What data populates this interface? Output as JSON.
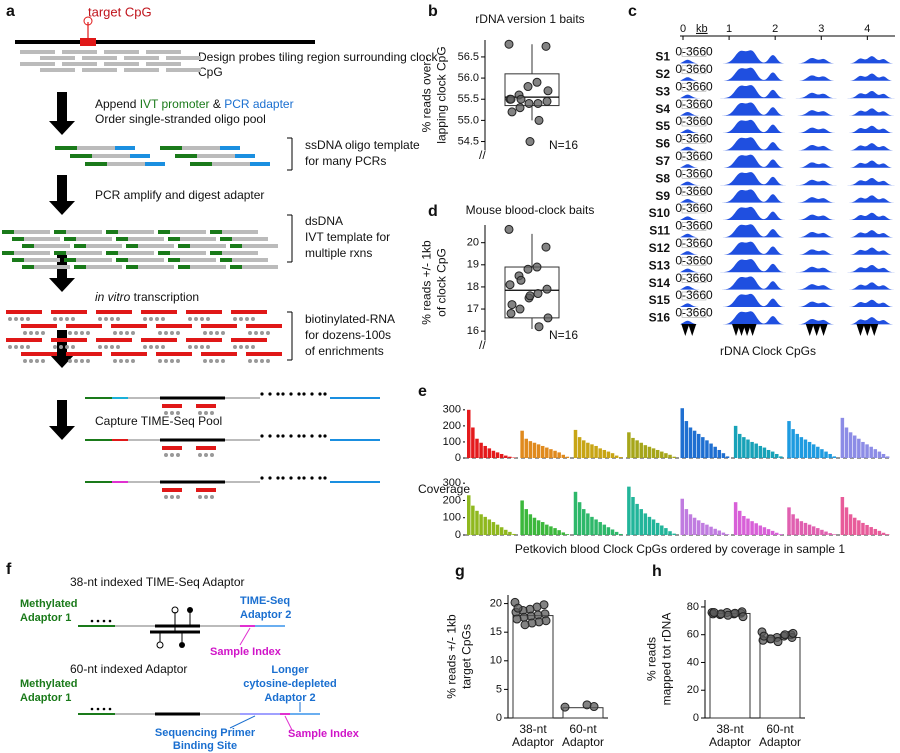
{
  "panel_a": {
    "label": "a",
    "target_label": "target CpG",
    "step1": [
      "Design probes tiling region surrounding clock",
      "CpG"
    ],
    "step2": [
      "Append ",
      "IVT promoter",
      " & ",
      "PCR adapter"
    ],
    "step2b": "Order single-stranded oligo pool",
    "note1": [
      "ssDNA oligo template",
      "for many PCRs"
    ],
    "step3": "PCR amplify and digest adapter",
    "note2": [
      "dsDNA",
      "IVT template for",
      "multiple rxns"
    ],
    "step4": [
      "in vitro",
      " transcription"
    ],
    "note3": [
      "biotinylated-RNA",
      "for dozens-100s",
      "of enrichments"
    ],
    "step5": "Capture TIME-Seq Pool"
  },
  "panel_f": {
    "label": "f",
    "title1": "38-nt indexed TIME-Seq Adaptor",
    "meth1": [
      "Methylated",
      "Adaptor 1"
    ],
    "ad2": [
      "TIME-Seq",
      "Adaptor 2"
    ],
    "index1": "Sample Index",
    "title2": "60-nt indexed Adaptor",
    "meth2": [
      "Methylated",
      "Adaptor 1"
    ],
    "ad2b": [
      "Longer",
      "cytosine-depleted",
      "Adaptor 2"
    ],
    "primer": [
      "Sequencing Primer",
      "Binding Site"
    ],
    "index2": "Sample Index"
  },
  "chart_data": [
    {
      "panel": "b",
      "type": "box",
      "title": "rDNA version 1 baits",
      "ylabel": [
        "% reads over-",
        "lapping clock CpG"
      ],
      "n_label": "N=16",
      "ylim": [
        54.3,
        56.9
      ],
      "yticks": [
        54.5,
        {
          "value": 55,
          "label": "55.0"
        },
        55.5,
        {
          "value": 56,
          "label": "56.0"
        },
        56.5
      ],
      "box": {
        "whislo": 55.0,
        "q1": 55.35,
        "med": 55.55,
        "q3": 56.1,
        "whishi": 56.8
      },
      "points": [
        56.8,
        56.75,
        55.9,
        55.8,
        55.6,
        55.5,
        55.45,
        55.4,
        55.4,
        55.3,
        55.5,
        55.7,
        55.0,
        54.5,
        55.5,
        55.2
      ]
    },
    {
      "panel": "c",
      "type": "tracks",
      "title": "rDNA Clock CpGs",
      "x_unit": "kb",
      "xlim": [
        0,
        4.6
      ],
      "xticks": [
        0,
        1,
        2,
        3,
        4
      ],
      "range_label": "0-3660",
      "samples": [
        "S1",
        "S2",
        "S3",
        "S4",
        "S5",
        "S6",
        "S7",
        "S8",
        "S9",
        "S10",
        "S11",
        "S12",
        "S13",
        "S14",
        "S15",
        "S16"
      ],
      "cpg_positions": [
        0.05,
        0.2,
        1.15,
        1.27,
        1.39,
        1.51,
        2.75,
        2.9,
        3.05,
        3.85,
        4.0,
        4.15
      ],
      "color": "#1f4fe0"
    },
    {
      "panel": "d",
      "type": "box",
      "title": "Mouse blood-clock baits",
      "ylabel": [
        "% reads +/- 1kb",
        "of clock CpG"
      ],
      "n_label": "N=16",
      "ylim": [
        15.6,
        20.8
      ],
      "yticks": [
        16,
        17,
        18,
        19,
        20
      ],
      "box": {
        "whislo": 16.1,
        "q1": 16.6,
        "med": 17.85,
        "q3": 18.9,
        "whishi": 20.4
      },
      "points": [
        20.6,
        19.8,
        18.9,
        18.8,
        18.5,
        18.1,
        17.9,
        17.7,
        17.5,
        17.0,
        16.8,
        16.6,
        16.2,
        17.6,
        18.3,
        17.2
      ]
    },
    {
      "panel": "e",
      "type": "bar-groups",
      "ylabel": "Coverage",
      "ylim": [
        0,
        330
      ],
      "yticks": [
        0,
        100,
        200,
        300
      ],
      "series": [
        {
          "color": "#e41a1c",
          "values": [
            300,
            190,
            120,
            95,
            75,
            60,
            45,
            35,
            25,
            15,
            8,
            3
          ]
        },
        {
          "color": "#e08a1e",
          "values": [
            170,
            120,
            105,
            95,
            85,
            75,
            65,
            55,
            45,
            35,
            20,
            8
          ]
        },
        {
          "color": "#c8a515",
          "values": [
            175,
            130,
            110,
            95,
            85,
            75,
            60,
            50,
            40,
            30,
            15,
            6
          ]
        },
        {
          "color": "#a6a61a",
          "values": [
            160,
            125,
            110,
            95,
            80,
            70,
            60,
            50,
            40,
            30,
            20,
            8
          ]
        },
        {
          "color": "#1f6fd1",
          "values": [
            310,
            230,
            190,
            170,
            150,
            130,
            110,
            90,
            70,
            50,
            30,
            10
          ]
        },
        {
          "color": "#17a2b8",
          "values": [
            200,
            150,
            130,
            115,
            100,
            90,
            75,
            65,
            50,
            40,
            25,
            10
          ]
        },
        {
          "color": "#1e9be0",
          "values": [
            230,
            180,
            150,
            130,
            115,
            100,
            85,
            70,
            55,
            40,
            25,
            10
          ]
        },
        {
          "color": "#8c8ce6",
          "values": [
            250,
            190,
            160,
            140,
            120,
            100,
            85,
            70,
            55,
            40,
            25,
            10
          ]
        }
      ]
    },
    {
      "type": "bar-groups",
      "xlabel": "Petkovich blood Clock CpGs ordered by coverage in sample 1",
      "ylim": [
        0,
        330
      ],
      "yticks": [
        0,
        100,
        200,
        300
      ],
      "series": [
        {
          "color": "#8fb81e",
          "values": [
            230,
            170,
            140,
            120,
            105,
            90,
            75,
            60,
            45,
            30,
            18,
            6
          ]
        },
        {
          "color": "#3cb83c",
          "values": [
            200,
            150,
            120,
            100,
            85,
            75,
            60,
            50,
            40,
            28,
            15,
            5
          ]
        },
        {
          "color": "#2eb86a",
          "values": [
            250,
            190,
            150,
            125,
            105,
            90,
            75,
            60,
            45,
            32,
            18,
            6
          ]
        },
        {
          "color": "#22b59a",
          "values": [
            280,
            220,
            180,
            150,
            125,
            105,
            90,
            70,
            55,
            40,
            22,
            8
          ]
        },
        {
          "color": "#c07ce0",
          "values": [
            210,
            150,
            120,
            100,
            85,
            70,
            60,
            48,
            36,
            26,
            14,
            5
          ]
        },
        {
          "color": "#d860d8",
          "values": [
            190,
            140,
            110,
            95,
            80,
            68,
            55,
            45,
            34,
            24,
            13,
            5
          ]
        },
        {
          "color": "#e060b0",
          "values": [
            160,
            120,
            95,
            80,
            70,
            60,
            50,
            40,
            30,
            20,
            11,
            4
          ]
        },
        {
          "color": "#e85c9a",
          "values": [
            220,
            160,
            120,
            100,
            85,
            70,
            58,
            46,
            35,
            24,
            13,
            5
          ]
        }
      ]
    },
    {
      "panel": "g",
      "type": "bar-points",
      "ylabel": [
        "% reads +/- 1kb",
        "target CpGs"
      ],
      "categories": [
        [
          "38-nt",
          "Adaptor"
        ],
        [
          "60-nt",
          "Adaptor"
        ]
      ],
      "values": [
        17.9,
        1.8
      ],
      "points": [
        [
          20.2,
          19.8,
          19.4,
          19.0,
          18.8,
          18.5,
          18.2,
          18.0,
          17.8,
          17.6,
          17.3,
          17.0,
          16.8,
          16.6,
          16.3,
          19.2
        ],
        [
          1.9,
          2.0,
          2.3
        ]
      ],
      "ylim": [
        0,
        21.5
      ],
      "yticks": [
        0,
        5,
        10,
        15,
        20
      ]
    },
    {
      "panel": "h",
      "type": "bar-points",
      "ylabel": [
        "% reads",
        "mapped tot rDNA"
      ],
      "categories": [
        [
          "38-nt",
          "Adaptor"
        ],
        [
          "60-nt",
          "Adaptor"
        ]
      ],
      "values": [
        75.3,
        58
      ],
      "points": [
        [
          76,
          75.5,
          75,
          76,
          74.5,
          75,
          76.5,
          75.5,
          74,
          75,
          76,
          73
        ],
        [
          62,
          60,
          59,
          58,
          57,
          56,
          58,
          60,
          55,
          57,
          59,
          61
        ]
      ],
      "ylim": [
        0,
        85
      ],
      "yticks": [
        0,
        20,
        40,
        60,
        80
      ]
    }
  ]
}
